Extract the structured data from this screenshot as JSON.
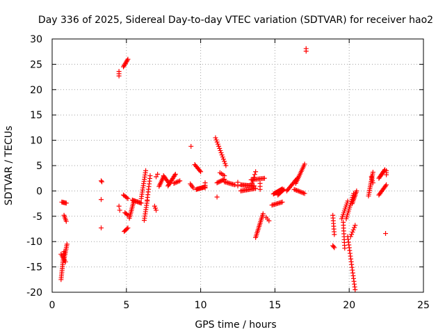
{
  "chart_data": {
    "type": "scatter",
    "title": "Day 336 of 2025, Sidereal Day-to-day VTEC variation (SDTVAR) for receiver hao2",
    "xlabel": "GPS time / hours",
    "ylabel": "SDTVAR / TECUs",
    "xlim": [
      0,
      25
    ],
    "ylim": [
      -20,
      30
    ],
    "xticks": [
      "0",
      "5",
      "10",
      "15",
      "20",
      "25"
    ],
    "yticks": [
      "-20",
      "-15",
      "-10",
      "-5",
      "0",
      "5",
      "10",
      "15",
      "20",
      "25",
      "30"
    ],
    "grid": true,
    "marker": "+",
    "color": "#ff0000",
    "segments": [
      {
        "x0": 0.6,
        "y0": -17.5,
        "x1": 0.8,
        "y1": -12.0,
        "n": 16
      },
      {
        "x0": 0.6,
        "y0": -12.5,
        "x1": 0.9,
        "y1": -14.0,
        "n": 6
      },
      {
        "x0": 0.8,
        "y0": -13.5,
        "x1": 1.0,
        "y1": -10.5,
        "n": 10
      },
      {
        "x0": 0.65,
        "y0": -2.2,
        "x1": 0.95,
        "y1": -2.4,
        "n": 6
      },
      {
        "x0": 0.8,
        "y0": -4.8,
        "x1": 0.95,
        "y1": -6.0,
        "n": 5
      },
      {
        "x0": 3.3,
        "y0": 2.0,
        "x1": 3.35,
        "y1": 1.8,
        "n": 2
      },
      {
        "x0": 3.3,
        "y0": -1.7,
        "x1": 3.3,
        "y1": -1.7,
        "n": 1
      },
      {
        "x0": 3.3,
        "y0": -7.3,
        "x1": 3.3,
        "y1": -7.3,
        "n": 1
      },
      {
        "x0": 4.5,
        "y0": 22.7,
        "x1": 4.5,
        "y1": 23.6,
        "n": 3
      },
      {
        "x0": 4.5,
        "y0": -3.0,
        "x1": 4.55,
        "y1": -3.8,
        "n": 2
      },
      {
        "x0": 4.8,
        "y0": 24.5,
        "x1": 5.1,
        "y1": 26.0,
        "n": 8
      },
      {
        "x0": 4.85,
        "y0": -8.0,
        "x1": 5.1,
        "y1": -7.3,
        "n": 5
      },
      {
        "x0": 4.8,
        "y0": -0.8,
        "x1": 5.1,
        "y1": -1.5,
        "n": 5
      },
      {
        "x0": 4.9,
        "y0": -4.3,
        "x1": 5.1,
        "y1": -4.8,
        "n": 4
      },
      {
        "x0": 5.2,
        "y0": -5.4,
        "x1": 5.5,
        "y1": -2.0,
        "n": 12
      },
      {
        "x0": 5.4,
        "y0": -1.8,
        "x1": 6.0,
        "y1": -2.4,
        "n": 10
      },
      {
        "x0": 6.0,
        "y0": -1.5,
        "x1": 6.3,
        "y1": 4.0,
        "n": 14
      },
      {
        "x0": 6.2,
        "y0": -5.8,
        "x1": 6.4,
        "y1": -2.0,
        "n": 10
      },
      {
        "x0": 6.4,
        "y0": -1.8,
        "x1": 6.6,
        "y1": 3.0,
        "n": 10
      },
      {
        "x0": 6.9,
        "y0": -3.0,
        "x1": 7.0,
        "y1": -3.8,
        "n": 3
      },
      {
        "x0": 7.0,
        "y0": 2.8,
        "x1": 7.1,
        "y1": 3.3,
        "n": 2
      },
      {
        "x0": 7.2,
        "y0": 0.9,
        "x1": 7.5,
        "y1": 2.8,
        "n": 8
      },
      {
        "x0": 7.5,
        "y0": 3.0,
        "x1": 7.9,
        "y1": 1.4,
        "n": 8
      },
      {
        "x0": 7.8,
        "y0": 1.0,
        "x1": 8.3,
        "y1": 3.3,
        "n": 12
      },
      {
        "x0": 8.2,
        "y0": 1.5,
        "x1": 8.6,
        "y1": 2.0,
        "n": 6
      },
      {
        "x0": 9.35,
        "y0": 8.8,
        "x1": 9.35,
        "y1": 8.8,
        "n": 1
      },
      {
        "x0": 9.3,
        "y0": 1.4,
        "x1": 9.5,
        "y1": 0.6,
        "n": 4
      },
      {
        "x0": 9.6,
        "y0": 5.2,
        "x1": 10.0,
        "y1": 3.8,
        "n": 8
      },
      {
        "x0": 9.7,
        "y0": 0.3,
        "x1": 10.3,
        "y1": 0.8,
        "n": 12
      },
      {
        "x0": 10.3,
        "y0": 1.6,
        "x1": 10.3,
        "y1": 0.6,
        "n": 3
      },
      {
        "x0": 11.0,
        "y0": 10.5,
        "x1": 11.7,
        "y1": 5.0,
        "n": 14
      },
      {
        "x0": 11.1,
        "y0": -1.2,
        "x1": 11.1,
        "y1": -1.2,
        "n": 1
      },
      {
        "x0": 11.1,
        "y0": 1.6,
        "x1": 11.6,
        "y1": 2.3,
        "n": 8
      },
      {
        "x0": 11.3,
        "y0": 3.6,
        "x1": 11.6,
        "y1": 3.0,
        "n": 4
      },
      {
        "x0": 11.6,
        "y0": 1.8,
        "x1": 12.3,
        "y1": 1.2,
        "n": 10
      },
      {
        "x0": 12.5,
        "y0": 1.7,
        "x1": 12.5,
        "y1": 1.0,
        "n": 2
      },
      {
        "x0": 12.7,
        "y0": 1.2,
        "x1": 13.6,
        "y1": 1.0,
        "n": 14
      },
      {
        "x0": 12.7,
        "y0": 0.0,
        "x1": 13.7,
        "y1": 0.5,
        "n": 14
      },
      {
        "x0": 13.4,
        "y0": 2.2,
        "x1": 14.3,
        "y1": 2.5,
        "n": 12
      },
      {
        "x0": 13.7,
        "y0": 3.8,
        "x1": 13.4,
        "y1": 1.0,
        "n": 6
      },
      {
        "x0": 13.7,
        "y0": -9.2,
        "x1": 14.2,
        "y1": -4.5,
        "n": 16
      },
      {
        "x0": 14.0,
        "y0": 1.5,
        "x1": 14.0,
        "y1": 0.3,
        "n": 3
      },
      {
        "x0": 14.4,
        "y0": -5.2,
        "x1": 14.6,
        "y1": -5.9,
        "n": 3
      },
      {
        "x0": 14.8,
        "y0": -2.8,
        "x1": 15.5,
        "y1": -2.2,
        "n": 10
      },
      {
        "x0": 14.9,
        "y0": -0.6,
        "x1": 15.5,
        "y1": 0.4,
        "n": 14
      },
      {
        "x0": 15.2,
        "y0": -0.8,
        "x1": 15.6,
        "y1": 0.3,
        "n": 8
      },
      {
        "x0": 15.8,
        "y0": 0.0,
        "x1": 16.5,
        "y1": 2.5,
        "n": 12
      },
      {
        "x0": 16.3,
        "y0": 0.3,
        "x1": 17.0,
        "y1": -0.5,
        "n": 10
      },
      {
        "x0": 16.4,
        "y0": 1.5,
        "x1": 17.0,
        "y1": 5.3,
        "n": 14
      },
      {
        "x0": 17.1,
        "y0": 27.6,
        "x1": 17.1,
        "y1": 28.1,
        "n": 2
      },
      {
        "x0": 18.9,
        "y0": -4.8,
        "x1": 19.0,
        "y1": -8.6,
        "n": 8
      },
      {
        "x0": 18.9,
        "y0": -10.8,
        "x1": 19.0,
        "y1": -11.2,
        "n": 3
      },
      {
        "x0": 19.5,
        "y0": -5.5,
        "x1": 19.9,
        "y1": -2.0,
        "n": 10
      },
      {
        "x0": 19.6,
        "y0": -6.2,
        "x1": 19.7,
        "y1": -11.3,
        "n": 10
      },
      {
        "x0": 19.8,
        "y0": -5.5,
        "x1": 20.3,
        "y1": -0.5,
        "n": 14
      },
      {
        "x0": 19.9,
        "y0": -9.0,
        "x1": 20.4,
        "y1": -19.5,
        "n": 20
      },
      {
        "x0": 20.1,
        "y0": -9.0,
        "x1": 20.4,
        "y1": -6.8,
        "n": 6
      },
      {
        "x0": 20.2,
        "y0": -2.5,
        "x1": 20.5,
        "y1": 0.0,
        "n": 10
      },
      {
        "x0": 21.3,
        "y0": -1.0,
        "x1": 21.6,
        "y1": 3.7,
        "n": 14
      },
      {
        "x0": 21.5,
        "y0": 2.8,
        "x1": 21.6,
        "y1": 1.6,
        "n": 4
      },
      {
        "x0": 22.0,
        "y0": -0.8,
        "x1": 22.5,
        "y1": 1.2,
        "n": 10
      },
      {
        "x0": 22.0,
        "y0": 2.5,
        "x1": 22.4,
        "y1": 4.2,
        "n": 10
      },
      {
        "x0": 22.5,
        "y0": 3.2,
        "x1": 22.5,
        "y1": 4.0,
        "n": 3
      },
      {
        "x0": 22.45,
        "y0": -8.4,
        "x1": 22.45,
        "y1": -8.4,
        "n": 1
      }
    ]
  }
}
